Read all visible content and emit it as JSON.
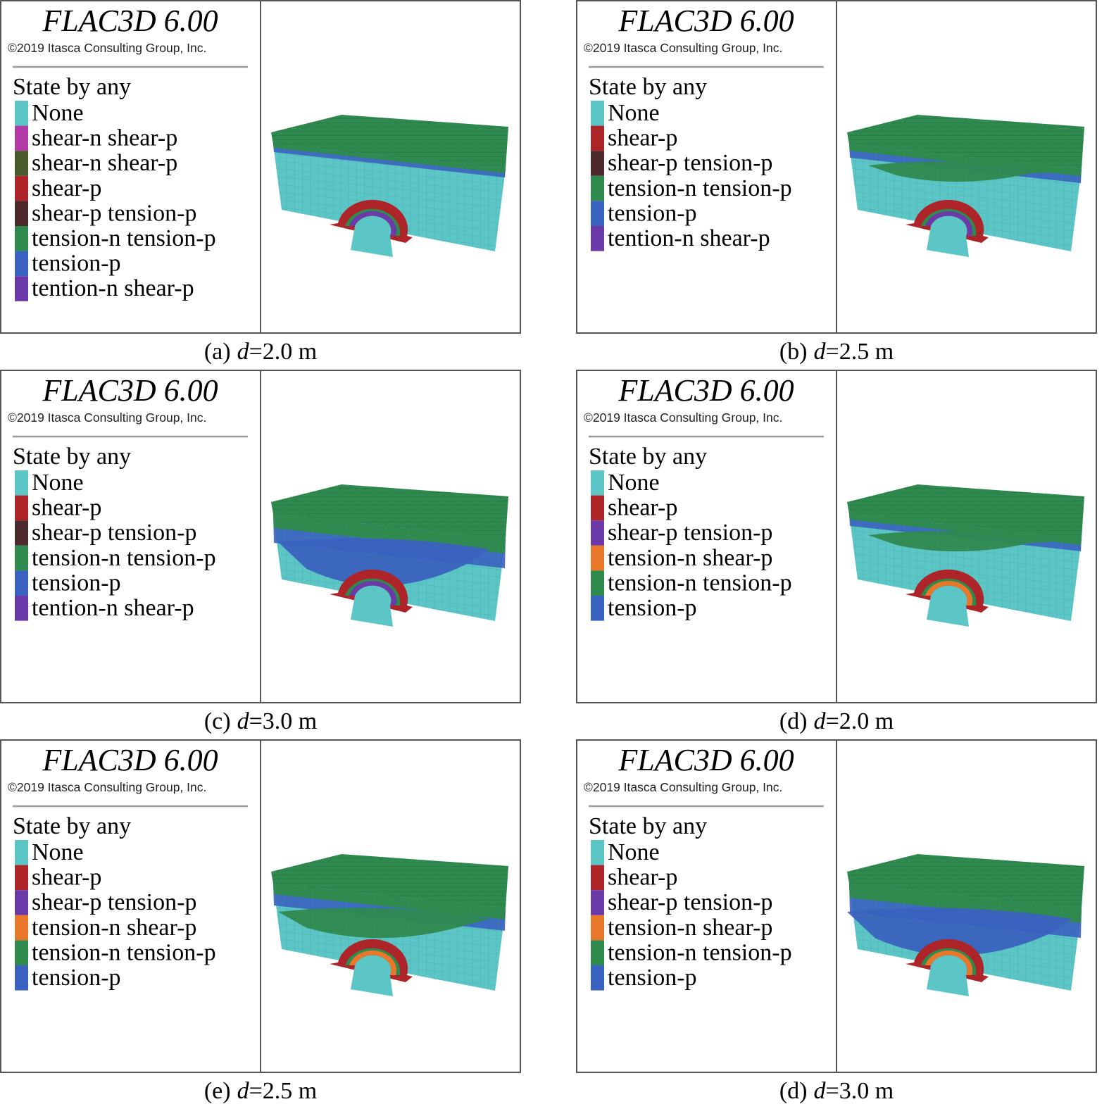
{
  "panels": [
    {
      "title": "FLAC3D 6.00",
      "copyright": "©2019 Itasca Consulting Group, Inc.",
      "legend_title": "State by any",
      "legend": [
        {
          "label": "None",
          "color": "#5cc6c6"
        },
        {
          "label": "shear-n shear-p",
          "color": "#b23aa6"
        },
        {
          "label": "shear-n shear-p",
          "color": "#4a5a2a"
        },
        {
          "label": "shear-p",
          "color": "#ad2429"
        },
        {
          "label": "shear-p tension-p",
          "color": "#4d2a2e"
        },
        {
          "label": "tension-n tension-p",
          "color": "#2f8a4e"
        },
        {
          "label": "tension-p",
          "color": "#3a62c0"
        },
        {
          "label": "tention-n shear-p",
          "color": "#6b3aa8"
        }
      ],
      "caption": {
        "label": "(a)",
        "variable": "d",
        "value": "=2.0 m"
      }
    },
    {
      "title": "FLAC3D 6.00",
      "copyright": "©2019 Itasca Consulting Group, Inc.",
      "legend_title": "State by any",
      "legend": [
        {
          "label": "None",
          "color": "#5cc6c6"
        },
        {
          "label": "shear-p",
          "color": "#ad2429"
        },
        {
          "label": "shear-p tension-p",
          "color": "#4d2a2e"
        },
        {
          "label": "tension-n tension-p",
          "color": "#2f8a4e"
        },
        {
          "label": "tension-p",
          "color": "#3a62c0"
        },
        {
          "label": "tention-n shear-p",
          "color": "#6b3aa8"
        }
      ],
      "caption": {
        "label": "(b)",
        "variable": "d",
        "value": "=2.5 m"
      }
    },
    {
      "title": "FLAC3D 6.00",
      "copyright": "©2019 Itasca Consulting Group, Inc.",
      "legend_title": "State by any",
      "legend": [
        {
          "label": "None",
          "color": "#5cc6c6"
        },
        {
          "label": "shear-p",
          "color": "#ad2429"
        },
        {
          "label": "shear-p tension-p",
          "color": "#4d2a2e"
        },
        {
          "label": "tension-n tension-p",
          "color": "#2f8a4e"
        },
        {
          "label": "tension-p",
          "color": "#3a62c0"
        },
        {
          "label": "tention-n shear-p",
          "color": "#6b3aa8"
        }
      ],
      "caption": {
        "label": "(c)",
        "variable": "d",
        "value": "=3.0 m"
      }
    },
    {
      "title": "FLAC3D 6.00",
      "copyright": "©2019 Itasca Consulting Group, Inc.",
      "legend_title": "State by any",
      "legend": [
        {
          "label": "None",
          "color": "#5cc6c6"
        },
        {
          "label": "shear-p",
          "color": "#ad2429"
        },
        {
          "label": "shear-p tension-p",
          "color": "#6b3aa8"
        },
        {
          "label": "tension-n shear-p",
          "color": "#e8772a"
        },
        {
          "label": "tension-n tension-p",
          "color": "#2f8a4e"
        },
        {
          "label": "tension-p",
          "color": "#3a62c0"
        }
      ],
      "caption": {
        "label": "(d)",
        "variable": "d",
        "value": "=2.0 m"
      }
    },
    {
      "title": "FLAC3D 6.00",
      "copyright": "©2019 Itasca Consulting Group, Inc.",
      "legend_title": "State by any",
      "legend": [
        {
          "label": "None",
          "color": "#5cc6c6"
        },
        {
          "label": "shear-p",
          "color": "#ad2429"
        },
        {
          "label": "shear-p tension-p",
          "color": "#6b3aa8"
        },
        {
          "label": "tension-n shear-p",
          "color": "#e8772a"
        },
        {
          "label": "tension-n tension-p",
          "color": "#2f8a4e"
        },
        {
          "label": "tension-p",
          "color": "#3a62c0"
        }
      ],
      "caption": {
        "label": "(e)",
        "variable": "d",
        "value": "=2.5 m"
      }
    },
    {
      "title": "FLAC3D 6.00",
      "copyright": "©2019 Itasca Consulting Group, Inc.",
      "legend_title": "State by any",
      "legend": [
        {
          "label": "None",
          "color": "#5cc6c6"
        },
        {
          "label": "shear-p",
          "color": "#ad2429"
        },
        {
          "label": "shear-p tension-p",
          "color": "#6b3aa8"
        },
        {
          "label": "tension-n shear-p",
          "color": "#e8772a"
        },
        {
          "label": "tension-n tension-p",
          "color": "#2f8a4e"
        },
        {
          "label": "tension-p",
          "color": "#3a62c0"
        }
      ],
      "caption": {
        "label": "(d)",
        "variable": "d",
        "value": "=3.0 m"
      }
    }
  ]
}
